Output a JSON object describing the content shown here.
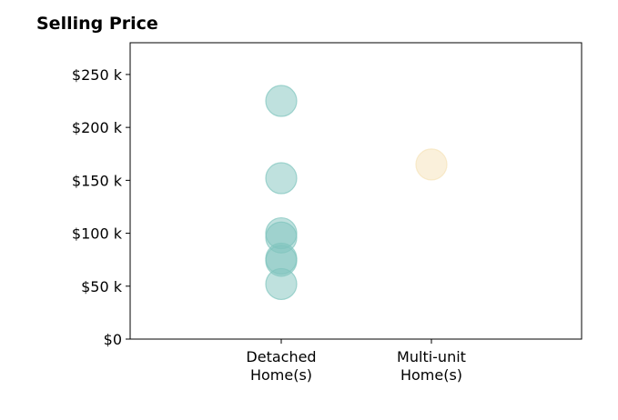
{
  "chart_data": {
    "type": "scatter",
    "title": "Selling Price",
    "xlabel": "",
    "ylabel": "",
    "categories": [
      "Detached Home(s)",
      "Multi-unit Home(s)"
    ],
    "category_lines": [
      [
        "Detached",
        "Home(s)"
      ],
      [
        "Multi-unit",
        "Home(s)"
      ]
    ],
    "ylim": [
      0,
      280000
    ],
    "yticks": [
      0,
      50000,
      100000,
      150000,
      200000,
      250000
    ],
    "ytick_labels": [
      "$0",
      "$50 k",
      "$100 k",
      "$150 k",
      "$200 k",
      "$250 k"
    ],
    "grid": false,
    "series": [
      {
        "category": "Detached Home(s)",
        "color": "#7fc4bd",
        "values": [
          225000,
          152000,
          100000,
          96000,
          76000,
          74000,
          52000
        ]
      },
      {
        "category": "Multi-unit Home(s)",
        "color": "#f5e2b8",
        "values": [
          165000
        ]
      }
    ]
  }
}
